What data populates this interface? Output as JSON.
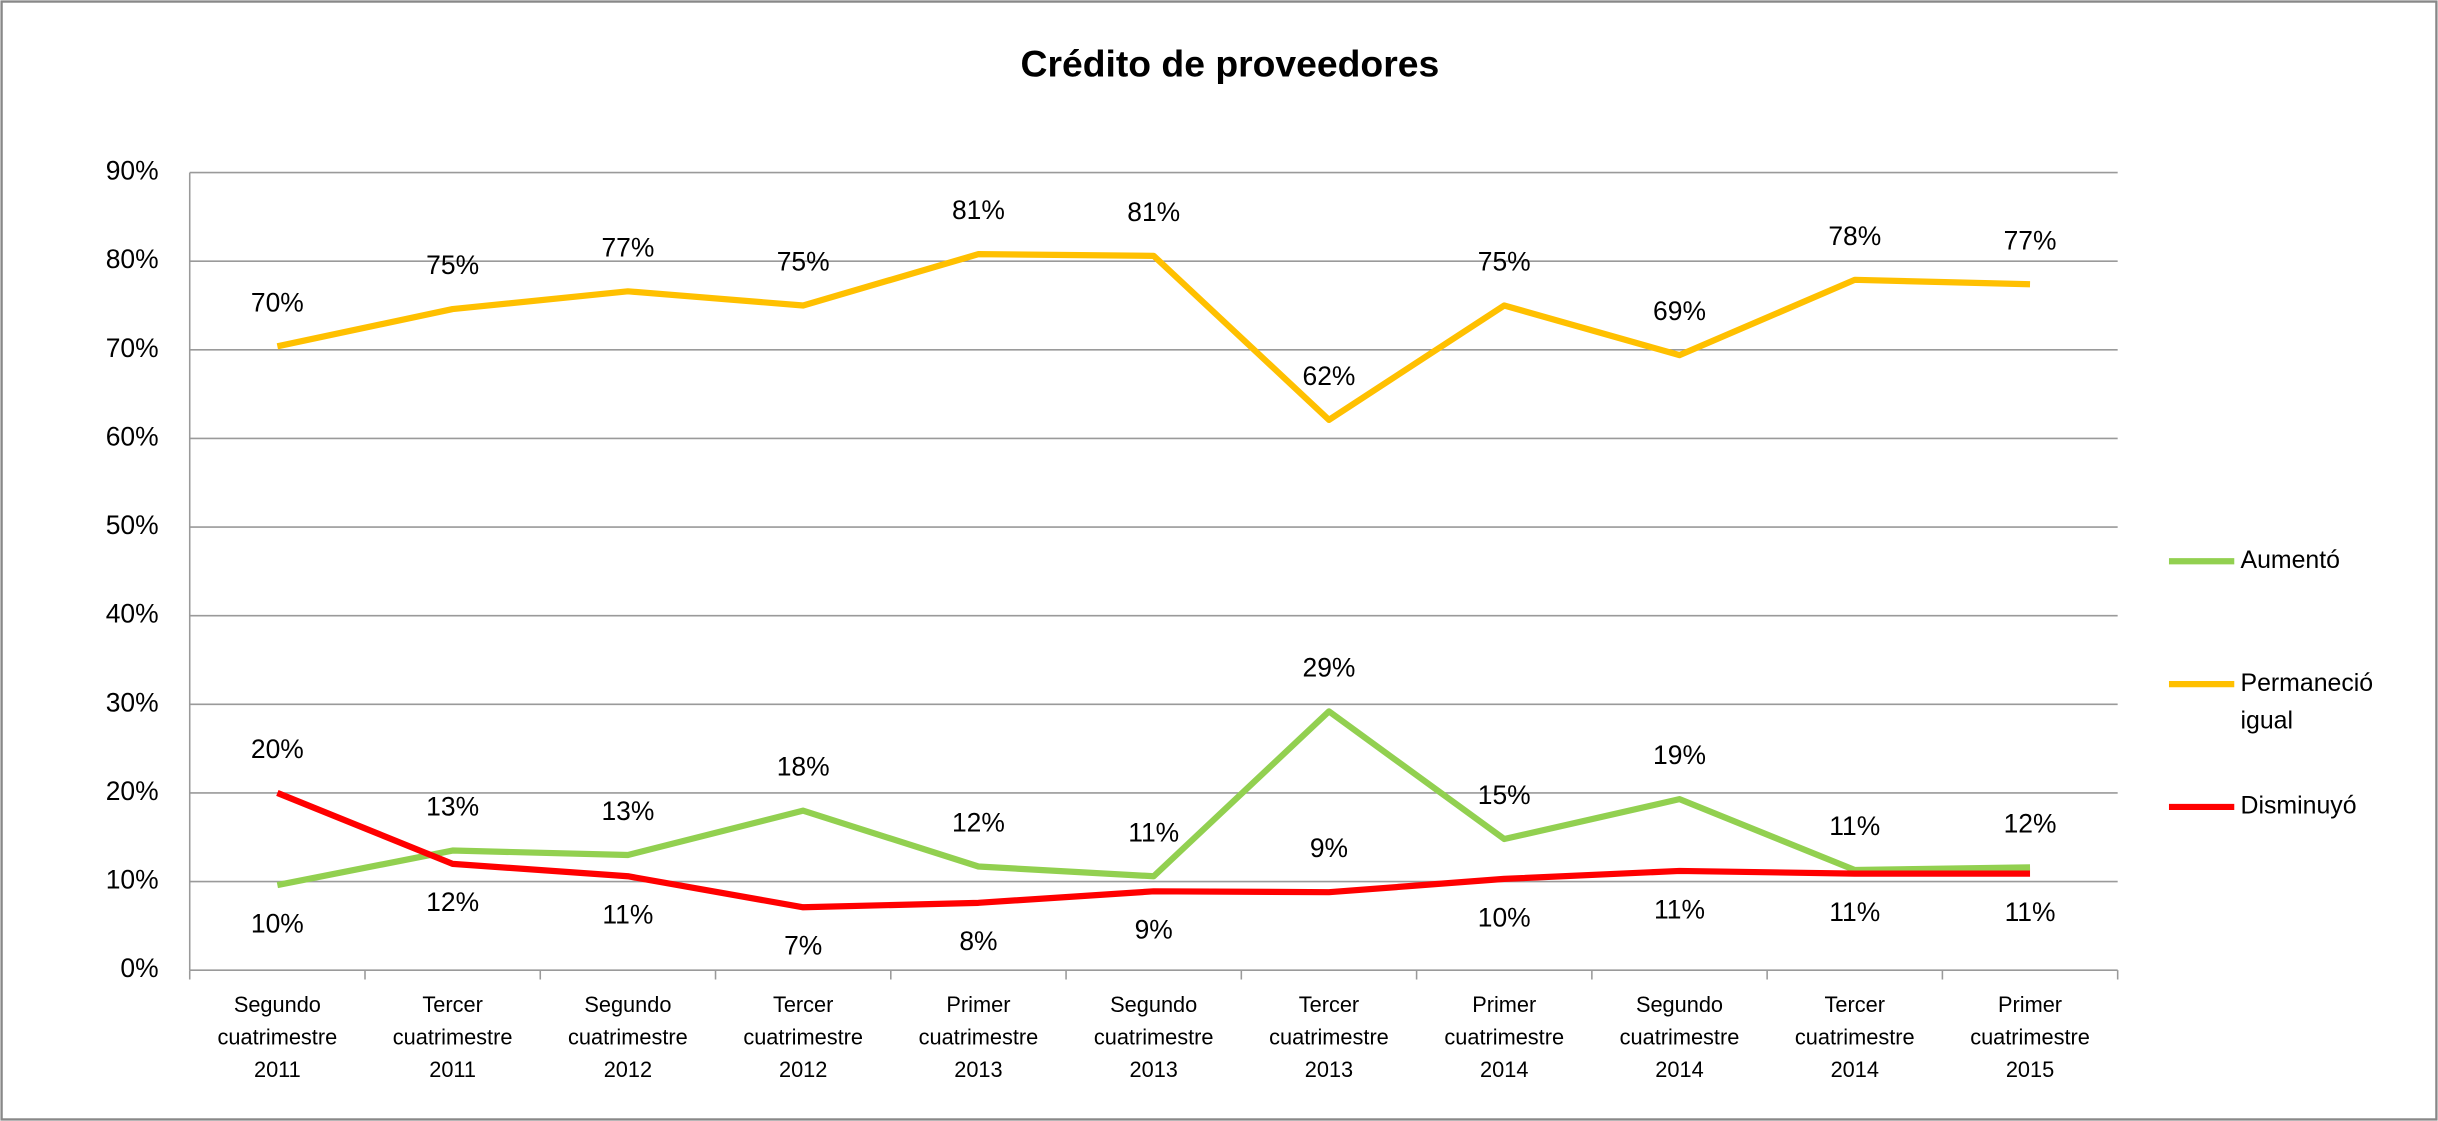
{
  "chart_data": {
    "type": "line",
    "title": "Crédito de proveedores",
    "categories": [
      "Segundo cuatrimestre 2011",
      "Tercer cuatrimestre 2011",
      "Segundo cuatrimestre 2012",
      "Tercer cuatrimestre 2012",
      "Primer cuatrimestre 2013",
      "Segundo cuatrimestre 2013",
      "Tercer cuatrimestre 2013",
      "Primer cuatrimestre 2014",
      "Segundo cuatrimestre 2014",
      "Tercer cuatrimestre 2014",
      "Primer cuatrimestre 2015"
    ],
    "series": [
      {
        "name": "Aumentó",
        "color": "#92d050",
        "values": [
          9.6,
          13.5,
          13,
          18,
          11.7,
          10.6,
          29.2,
          14.8,
          19.3,
          11.3,
          11.6
        ],
        "value_labels": [
          "10%",
          "13%",
          "13%",
          "18%",
          "12%",
          "11%",
          "29%",
          "15%",
          "19%",
          "11%",
          "12%"
        ]
      },
      {
        "name": "Permaneció igual",
        "color": "#ffc000",
        "values": [
          70.4,
          74.6,
          76.6,
          75,
          80.8,
          80.6,
          62.1,
          75,
          69.4,
          77.9,
          77.4
        ],
        "value_labels": [
          "70%",
          "75%",
          "77%",
          "75%",
          "81%",
          "81%",
          "62%",
          "75%",
          "69%",
          "78%",
          "77%"
        ]
      },
      {
        "name": "Disminuyó",
        "color": "#ff0000",
        "values": [
          20,
          12,
          10.6,
          7.1,
          7.6,
          8.9,
          8.8,
          10.3,
          11.2,
          10.9,
          10.9
        ],
        "value_labels": [
          "20%",
          "12%",
          "11%",
          "7%",
          "8%",
          "9%",
          "9%",
          "10%",
          "11%",
          "11%",
          "11%"
        ]
      }
    ],
    "ylim": [
      0,
      90
    ],
    "yticks": [
      {
        "value": 0,
        "label": "0%"
      },
      {
        "value": 10,
        "label": "10%"
      },
      {
        "value": 20,
        "label": "20%"
      },
      {
        "value": 30,
        "label": "30%"
      },
      {
        "value": 40,
        "label": "40%"
      },
      {
        "value": 50,
        "label": "50%"
      },
      {
        "value": 60,
        "label": "60%"
      },
      {
        "value": 70,
        "label": "70%"
      },
      {
        "value": 80,
        "label": "80%"
      },
      {
        "value": 90,
        "label": "90%"
      }
    ],
    "grid": true,
    "legend": "right"
  }
}
